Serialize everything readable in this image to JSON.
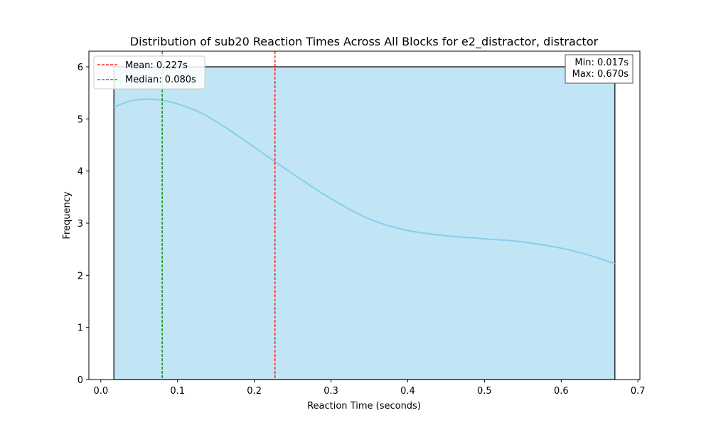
{
  "chart_data": {
    "type": "histogram",
    "title": "Distribution of sub20 Reaction Times Across All Blocks for e2_distractor, distractor",
    "xlabel": "Reaction Time (seconds)",
    "ylabel": "Frequency",
    "xlim": [
      -0.0156,
      0.7026
    ],
    "ylim": [
      0,
      6.3
    ],
    "xticks": [
      0.0,
      0.1,
      0.2,
      0.3,
      0.4,
      0.5,
      0.6,
      0.7
    ],
    "xtick_labels": [
      "0.0",
      "0.1",
      "0.2",
      "0.3",
      "0.4",
      "0.5",
      "0.6",
      "0.7"
    ],
    "yticks": [
      0,
      1,
      2,
      3,
      4,
      5,
      6
    ],
    "ytick_labels": [
      "0",
      "1",
      "2",
      "3",
      "4",
      "5",
      "6"
    ],
    "bins": [
      {
        "x0": 0.017,
        "x1": 0.67,
        "count": 6
      }
    ],
    "kde": {
      "x": [
        0.017,
        0.04,
        0.06,
        0.08,
        0.1,
        0.13,
        0.16,
        0.19,
        0.227,
        0.26,
        0.3,
        0.35,
        0.4,
        0.45,
        0.5,
        0.55,
        0.6,
        0.64,
        0.67
      ],
      "y": [
        5.23,
        5.35,
        5.38,
        5.36,
        5.29,
        5.12,
        4.86,
        4.56,
        4.18,
        3.85,
        3.47,
        3.08,
        2.86,
        2.76,
        2.7,
        2.64,
        2.52,
        2.37,
        2.22
      ]
    },
    "vlines": [
      {
        "label": "Mean: 0.227s",
        "x": 0.227,
        "color": "#ff0000",
        "style": "dashed"
      },
      {
        "label": "Median: 0.080s",
        "x": 0.08,
        "color": "#008000",
        "style": "dashed"
      }
    ],
    "stats_box": {
      "lines": [
        "Min: 0.017s",
        "Max: 0.670s"
      ],
      "placement": "top-right"
    },
    "legend_placement": "top-left",
    "grid": false,
    "colors": {
      "bar_fill": "#c1e5f4",
      "bar_edge": "#000000",
      "kde_line": "#87ceeb"
    }
  }
}
